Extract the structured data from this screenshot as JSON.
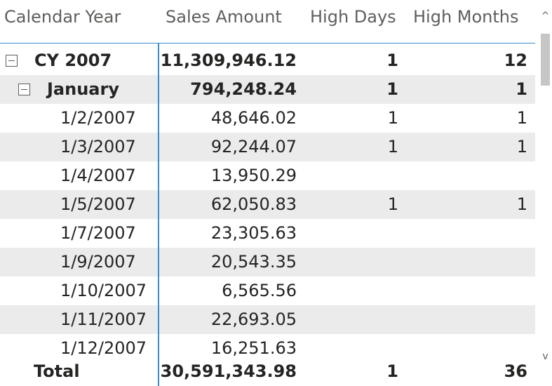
{
  "headers": {
    "calendar_year": "Calendar Year",
    "sales_amount": "Sales Amount",
    "high_days": "High Days",
    "high_months": "High Months"
  },
  "rows": [
    {
      "level": 0,
      "expander": true,
      "bold": true,
      "label": "CY 2007",
      "sales": "11,309,946.12",
      "high_days": "1",
      "high_months": "12"
    },
    {
      "level": 1,
      "expander": true,
      "bold": true,
      "label": "January",
      "sales": "794,248.24",
      "high_days": "1",
      "high_months": "1"
    },
    {
      "level": 2,
      "expander": false,
      "bold": false,
      "label": "1/2/2007",
      "sales": "48,646.02",
      "high_days": "1",
      "high_months": "1"
    },
    {
      "level": 2,
      "expander": false,
      "bold": false,
      "label": "1/3/2007",
      "sales": "92,244.07",
      "high_days": "1",
      "high_months": "1"
    },
    {
      "level": 2,
      "expander": false,
      "bold": false,
      "label": "1/4/2007",
      "sales": "13,950.29",
      "high_days": "",
      "high_months": ""
    },
    {
      "level": 2,
      "expander": false,
      "bold": false,
      "label": "1/5/2007",
      "sales": "62,050.83",
      "high_days": "1",
      "high_months": "1"
    },
    {
      "level": 2,
      "expander": false,
      "bold": false,
      "label": "1/7/2007",
      "sales": "23,305.63",
      "high_days": "",
      "high_months": ""
    },
    {
      "level": 2,
      "expander": false,
      "bold": false,
      "label": "1/9/2007",
      "sales": "20,543.35",
      "high_days": "",
      "high_months": ""
    },
    {
      "level": 2,
      "expander": false,
      "bold": false,
      "label": "1/10/2007",
      "sales": "6,565.56",
      "high_days": "",
      "high_months": ""
    },
    {
      "level": 2,
      "expander": false,
      "bold": false,
      "label": "1/11/2007",
      "sales": "22,693.05",
      "high_days": "",
      "high_months": ""
    },
    {
      "level": 2,
      "expander": false,
      "bold": false,
      "label": "1/12/2007",
      "sales": "16,251.63",
      "high_days": "",
      "high_months": ""
    }
  ],
  "total": {
    "label": "Total",
    "sales": "30,591,343.98",
    "high_days": "1",
    "high_months": "36"
  },
  "scrollbar": {
    "up_icon": "chevron-up-icon",
    "down_icon": "chevron-down-icon",
    "up_glyph": "^",
    "down_glyph": "v"
  },
  "colors": {
    "accent": "#3b8ec9",
    "row_alt": "#ebebeb"
  }
}
